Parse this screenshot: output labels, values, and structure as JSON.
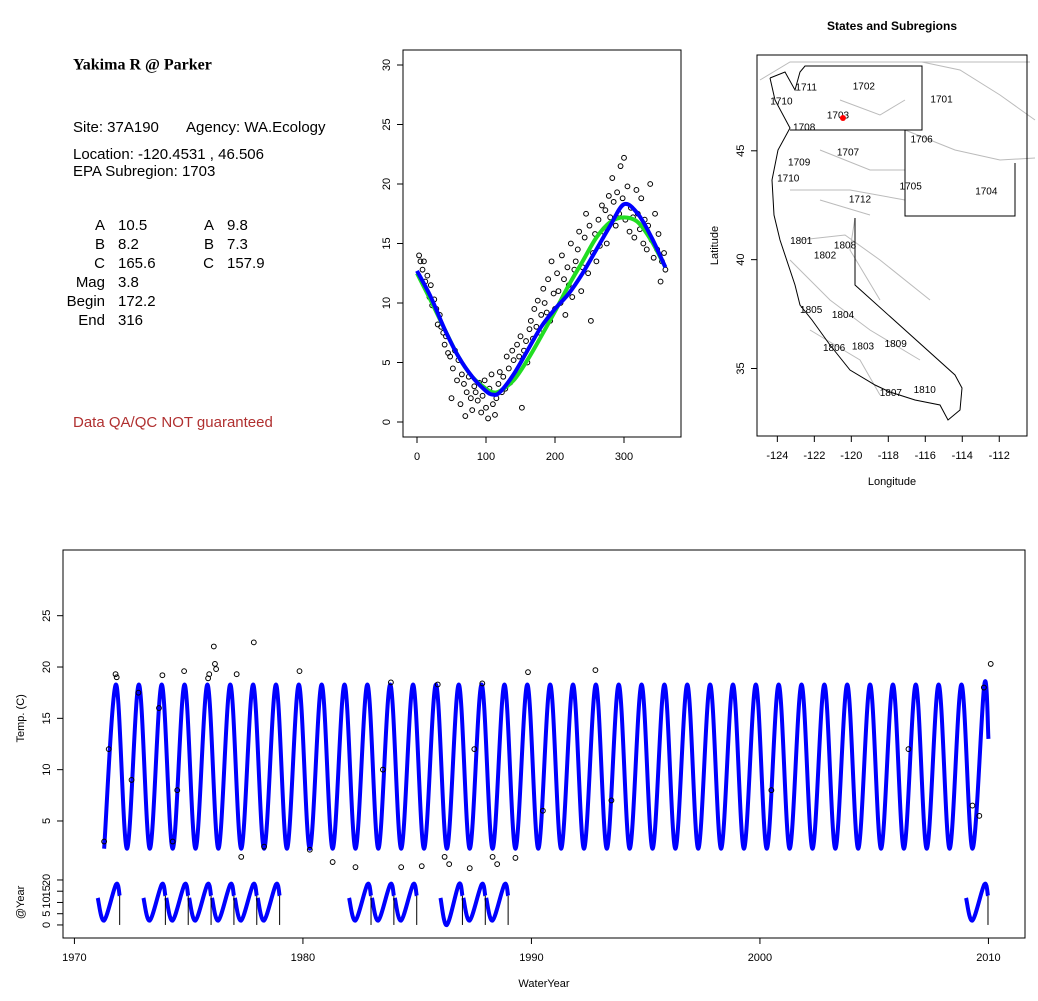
{
  "info": {
    "title": "Yakima R @ Parker",
    "site": "Site: 37A190",
    "agency": "Agency: WA.Ecology",
    "location": "Location: -120.4531 , 46.506",
    "subregion": "EPA Subregion: 1703",
    "params": [
      [
        "A",
        10.5,
        "A",
        9.8
      ],
      [
        "B",
        8.2,
        "B",
        7.3
      ],
      [
        "C",
        165.6,
        "C",
        157.9
      ],
      [
        "Mag",
        3.8
      ],
      [
        "Begin",
        172.2
      ],
      [
        "End",
        316
      ]
    ],
    "disclaimer": "Data QA/QC NOT guaranteed"
  },
  "chart_data": [
    {
      "type": "scatter",
      "xlim": [
        -20.3,
        382.6
      ],
      "ylim": [
        -1.26,
        31.26
      ],
      "xticks": [
        0,
        100,
        200,
        300
      ],
      "yticks": [
        0,
        5,
        10,
        15,
        20,
        25,
        30
      ],
      "point_color": "#000000",
      "x": [
        3,
        5,
        8,
        10,
        12,
        15,
        18,
        20,
        22,
        25,
        28,
        30,
        33,
        35,
        38,
        40,
        42,
        45,
        48,
        50,
        52,
        55,
        58,
        60,
        63,
        65,
        68,
        70,
        72,
        75,
        78,
        80,
        83,
        85,
        88,
        90,
        93,
        95,
        98,
        100,
        103,
        105,
        108,
        110,
        113,
        115,
        118,
        120,
        123,
        125,
        128,
        130,
        133,
        135,
        138,
        140,
        143,
        145,
        148,
        150,
        152,
        155,
        158,
        160,
        163,
        165,
        168,
        170,
        173,
        175,
        178,
        180,
        183,
        185,
        188,
        190,
        193,
        195,
        198,
        200,
        203,
        205,
        208,
        210,
        213,
        215,
        218,
        220,
        223,
        225,
        228,
        230,
        233,
        235,
        238,
        240,
        243,
        245,
        248,
        250,
        252,
        255,
        258,
        260,
        263,
        265,
        268,
        270,
        273,
        275,
        278,
        280,
        283,
        285,
        288,
        290,
        293,
        295,
        298,
        300,
        302,
        305,
        308,
        310,
        313,
        315,
        318,
        320,
        323,
        325,
        328,
        330,
        333,
        335,
        338,
        340,
        343,
        345,
        348,
        350,
        353,
        355,
        358,
        360
      ],
      "values": [
        14,
        13.5,
        12.8,
        13.5,
        11.8,
        12.3,
        10.5,
        11.5,
        9.8,
        10.3,
        9.5,
        8.2,
        9,
        8,
        7.5,
        6.5,
        7.2,
        5.8,
        5.5,
        2,
        4.5,
        6,
        3.5,
        5.2,
        1.5,
        4,
        3.2,
        0.5,
        2.5,
        3.8,
        2,
        1,
        3,
        2.5,
        1.8,
        3.3,
        0.8,
        2.2,
        3.5,
        1.2,
        0.3,
        2.8,
        4,
        1.5,
        0.6,
        2,
        3.2,
        4.2,
        2.5,
        3.8,
        2.8,
        5.5,
        4.5,
        3.3,
        6,
        5.2,
        4,
        6.5,
        5.5,
        7.2,
        1.2,
        6,
        6.8,
        5,
        7.8,
        8.5,
        7,
        9.5,
        8,
        10.2,
        7.5,
        9,
        11.2,
        10,
        9.2,
        12,
        8.5,
        13.5,
        10.8,
        9.5,
        12.5,
        11,
        10,
        14,
        12,
        9,
        13,
        11.5,
        15,
        10.5,
        12.8,
        13.5,
        14.5,
        16,
        11,
        13,
        15.5,
        17.5,
        12.5,
        16.5,
        8.5,
        14.2,
        15.8,
        13.5,
        17,
        14.8,
        18.2,
        16,
        17.8,
        15,
        19,
        17.2,
        20.5,
        18.5,
        16.5,
        19.3,
        17.5,
        21.5,
        18.8,
        22.2,
        17,
        19.8,
        16,
        18,
        17.2,
        15.5,
        19.5,
        17.5,
        16.2,
        18.8,
        15,
        17,
        14.5,
        16.5,
        20,
        15.3,
        13.8,
        17.5,
        14.5,
        15.8,
        11.8,
        13.5,
        14.2,
        12.8
      ],
      "lines": [
        {
          "color": "#22dd22",
          "x": [
            0,
            20,
            40,
            60,
            80,
            100,
            110,
            120,
            140,
            160,
            180,
            200,
            220,
            240,
            260,
            280,
            300,
            320,
            340,
            360
          ],
          "values": [
            12.5,
            10.2,
            7.8,
            5.5,
            3.8,
            2.8,
            2.5,
            2.6,
            3.5,
            5.2,
            7.2,
            9.3,
            11.5,
            13.5,
            15.5,
            16.8,
            17.2,
            16.8,
            15.2,
            13.0
          ]
        },
        {
          "color": "#0000ff",
          "x": [
            0,
            20,
            40,
            60,
            80,
            100,
            110,
            120,
            140,
            160,
            180,
            200,
            220,
            240,
            260,
            280,
            300,
            320,
            340,
            360
          ],
          "values": [
            12.7,
            10.5,
            7.8,
            5.5,
            3.8,
            2.6,
            2.3,
            2.5,
            4.0,
            6.0,
            8.0,
            9.5,
            10.8,
            12.5,
            14.5,
            16.5,
            18.3,
            17.5,
            15.5,
            13.0
          ]
        }
      ]
    },
    {
      "type": "map",
      "title": "States and Subregions",
      "xlabel": "Longitude",
      "ylabel": "Latitude",
      "xlim": [
        -125.1,
        -110.5
      ],
      "ylim": [
        31.9,
        49.4
      ],
      "xticks": [
        -124,
        -122,
        -120,
        -118,
        -116,
        -114,
        -112
      ],
      "yticks": [
        35,
        40,
        45
      ],
      "labels": [
        {
          "text": "1702",
          "x": -119.32,
          "y": 47.94
        },
        {
          "text": "1701",
          "x": -115.12,
          "y": 47.34
        },
        {
          "text": "1711",
          "x": -122.44,
          "y": 47.89
        },
        {
          "text": "1710",
          "x": -123.78,
          "y": 47.25
        },
        {
          "text": "1703",
          "x": -120.72,
          "y": 46.6
        },
        {
          "text": "1708",
          "x": -122.55,
          "y": 46.06
        },
        {
          "text": "1706",
          "x": -116.2,
          "y": 45.5
        },
        {
          "text": "1707",
          "x": -120.18,
          "y": 44.91
        },
        {
          "text": "1709",
          "x": -122.82,
          "y": 44.45
        },
        {
          "text": "1710",
          "x": -123.41,
          "y": 43.72
        },
        {
          "text": "1705",
          "x": -116.79,
          "y": 43.35
        },
        {
          "text": "1704",
          "x": -112.7,
          "y": 43.12
        },
        {
          "text": "1712",
          "x": -119.53,
          "y": 42.75
        },
        {
          "text": "1801",
          "x": -122.71,
          "y": 40.83
        },
        {
          "text": "1808",
          "x": -120.34,
          "y": 40.64
        },
        {
          "text": "1802",
          "x": -121.42,
          "y": 40.18
        },
        {
          "text": "1805",
          "x": -122.17,
          "y": 37.66
        },
        {
          "text": "1804",
          "x": -120.45,
          "y": 37.43
        },
        {
          "text": "1809",
          "x": -117.6,
          "y": 36.1
        },
        {
          "text": "1806",
          "x": -120.93,
          "y": 35.92
        },
        {
          "text": "1803",
          "x": -119.37,
          "y": 36.0
        },
        {
          "text": "1807",
          "x": -117.86,
          "y": 33.85
        },
        {
          "text": "1810",
          "x": -116.03,
          "y": 33.99
        }
      ],
      "site": {
        "x": -120.4531,
        "y": 46.506,
        "color": "#ff0000"
      }
    },
    {
      "type": "line",
      "xlabel": "WaterYear",
      "ylabel": "Temp. (C)",
      "y2label": "@Year",
      "xlim": [
        1969.5,
        2011.6
      ],
      "ylim": [
        -6.4,
        31.4
      ],
      "xticks": [
        1970,
        1980,
        1990,
        2000,
        2010
      ],
      "yticks": [
        5,
        10,
        15,
        20,
        25
      ],
      "y2lim": [
        -5.8,
        166.7
      ],
      "y2ticks": [
        0,
        5,
        10,
        15,
        20
      ],
      "point_color": "#000000",
      "x": [
        1971.3,
        1971.5,
        1971.8,
        1971.85,
        1972.5,
        1972.8,
        1973.7,
        1973.85,
        1974.3,
        1974.5,
        1974.8,
        1975.85,
        1975.9,
        1976.1,
        1976.15,
        1976.2,
        1977.1,
        1977.3,
        1977.85,
        1978.3,
        1979.85,
        1980.3,
        1981.3,
        1982.3,
        1983.5,
        1983.85,
        1984.3,
        1985.2,
        1985.9,
        1986.2,
        1986.4,
        1987.3,
        1987.5,
        1987.85,
        1988.3,
        1988.5,
        1989.3,
        1989.85,
        1990.5,
        1992.8,
        1993.5,
        2000.5,
        2006.5,
        2009.3,
        2009.6,
        2009.8,
        2010.1
      ],
      "values": [
        3,
        12,
        19.3,
        19,
        9,
        17.5,
        16,
        19.2,
        3,
        8,
        19.6,
        18.9,
        19.3,
        22,
        20.3,
        19.8,
        19.3,
        1.5,
        22.4,
        2.5,
        19.6,
        2.2,
        1,
        0.5,
        10,
        18.5,
        0.5,
        0.6,
        18.3,
        1.5,
        0.8,
        0.4,
        12,
        18.4,
        1.5,
        0.8,
        1.4,
        19.5,
        6,
        19.7,
        7,
        8,
        12,
        6.5,
        5.5,
        18,
        20.3
      ],
      "series": [
        {
          "color": "#0000ff",
          "x": [
            1971.3,
            1971.82,
            1972.3,
            1972.82,
            1973.3,
            1973.82,
            1974.3,
            1974.82,
            1975.3,
            1975.82,
            1976.3,
            1976.82,
            1977.3,
            1977.82,
            1978.3,
            1978.82,
            1979.3,
            1979.82,
            1980.3,
            1980.82,
            1981.3,
            1981.82,
            1982.3,
            1982.82,
            1983.3,
            1983.82,
            1984.3,
            1984.82,
            1985.3,
            1985.82,
            1986.3,
            1986.82,
            1987.3,
            1987.82,
            1988.3,
            1988.82,
            1989.3,
            1989.82,
            1990.3,
            1990.82,
            1991.3,
            1991.82,
            1992.3,
            1992.82,
            1993.3,
            1993.82,
            1994.3,
            1994.82,
            1995.3,
            1995.82,
            1996.3,
            1996.82,
            1997.3,
            1997.82,
            1998.3,
            1998.82,
            1999.3,
            1999.82,
            2000.3,
            2000.82,
            2001.3,
            2001.82,
            2002.3,
            2002.82,
            2003.3,
            2003.82,
            2004.3,
            2004.82,
            2005.3,
            2005.82,
            2006.3,
            2006.82,
            2007.3,
            2007.82,
            2008.3,
            2008.82,
            2009.3,
            2009.82,
            2010
          ],
          "values": [
            2.3,
            18.3,
            2.3,
            18.3,
            2.3,
            18.3,
            2.3,
            18.3,
            2.3,
            18.3,
            2.3,
            18.3,
            2.3,
            18.3,
            2.3,
            18.3,
            2.3,
            18.3,
            2.3,
            18.3,
            2.3,
            18.3,
            2.3,
            18.3,
            2.3,
            18.3,
            2.3,
            18.3,
            2.3,
            18.3,
            2.3,
            18.3,
            2.3,
            18.3,
            2.3,
            18.3,
            2.3,
            18.3,
            2.3,
            18.3,
            2.3,
            18.3,
            2.3,
            18.3,
            2.3,
            18.3,
            2.3,
            18.3,
            2.3,
            18.3,
            2.3,
            18.3,
            2.3,
            18.3,
            2.3,
            18.3,
            2.3,
            18.3,
            2.3,
            18.3,
            2.3,
            18.3,
            2.3,
            18.3,
            2.3,
            18.3,
            2.3,
            18.3,
            2.3,
            18.3,
            2.3,
            18.3,
            2.3,
            18.3,
            2.3,
            18.3,
            2.3,
            18.3,
            13
          ]
        },
        {
          "color": "#0000ff",
          "axis": "y2",
          "x": [
            1971.02,
            1971.3,
            1971.82,
            1971.98,
            null,
            1973.02,
            1973.3,
            1973.82,
            1973.98,
            null,
            1974.02,
            1974.3,
            1974.82,
            1974.98,
            null,
            1975.02,
            1975.3,
            1975.82,
            1975.98,
            null,
            1976.02,
            1976.3,
            1976.82,
            1976.98,
            null,
            1977.02,
            1977.3,
            1977.82,
            1977.98,
            null,
            1978.02,
            1978.3,
            1978.82,
            1978.98,
            null,
            1982.02,
            1982.3,
            1982.82,
            1982.98,
            null,
            1983.02,
            1983.3,
            1983.82,
            1983.98,
            null,
            1984.02,
            1984.3,
            1984.82,
            1984.98,
            null,
            1986.02,
            1986.3,
            1986.82,
            1986.98,
            null,
            1987.02,
            1987.3,
            1987.82,
            1987.98,
            null,
            1988.02,
            1988.3,
            1988.82,
            1988.98,
            null,
            2009.02,
            2009.3,
            2009.82,
            2009.98
          ],
          "values": [
            12,
            2,
            18,
            13,
            null,
            12,
            2,
            18,
            13,
            null,
            12,
            2,
            18,
            13,
            null,
            12,
            2,
            18,
            13,
            null,
            12,
            2,
            18,
            13,
            null,
            12,
            2,
            18,
            13,
            null,
            12,
            2,
            18,
            13,
            null,
            12,
            2,
            18,
            13,
            null,
            12,
            2,
            18,
            13,
            null,
            12,
            2,
            18,
            13,
            null,
            12,
            0,
            18,
            13,
            null,
            12,
            2,
            18,
            13,
            null,
            12,
            2,
            18,
            13,
            null,
            12,
            2,
            18,
            13
          ]
        }
      ]
    }
  ]
}
